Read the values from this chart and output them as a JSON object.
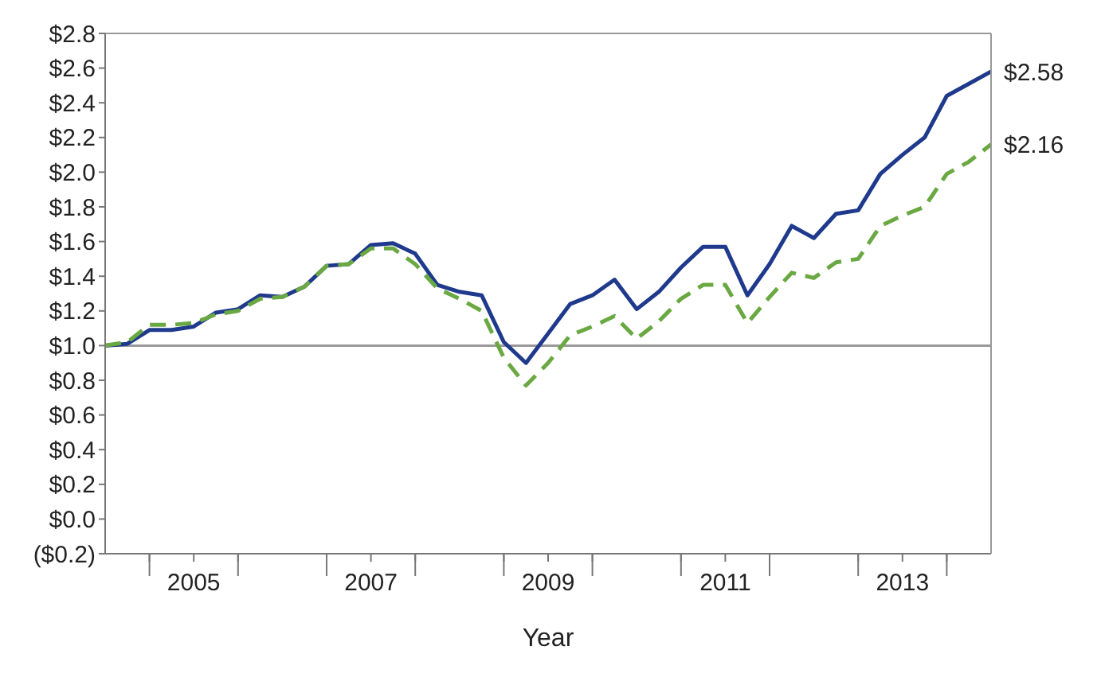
{
  "chart_data": {
    "type": "line",
    "xlabel": "Year",
    "x": [
      2004.5,
      2004.75,
      2005,
      2005.25,
      2005.5,
      2005.75,
      2006,
      2006.25,
      2006.5,
      2006.75,
      2007,
      2007.25,
      2007.5,
      2007.75,
      2008,
      2008.25,
      2008.5,
      2008.75,
      2009,
      2009.25,
      2009.5,
      2009.75,
      2010,
      2010.25,
      2010.5,
      2010.75,
      2011,
      2011.25,
      2011.5,
      2011.75,
      2012,
      2012.25,
      2012.5,
      2012.75,
      2013,
      2013.25,
      2013.5,
      2013.75,
      2014,
      2014.25,
      2014.5
    ],
    "series": [
      {
        "color": "#1f3a8c",
        "line_style": "solid",
        "values": [
          1.0,
          1.01,
          1.09,
          1.09,
          1.11,
          1.19,
          1.21,
          1.29,
          1.28,
          1.34,
          1.46,
          1.47,
          1.58,
          1.59,
          1.53,
          1.35,
          1.31,
          1.29,
          1.02,
          0.9,
          1.07,
          1.24,
          1.29,
          1.38,
          1.21,
          1.31,
          1.45,
          1.57,
          1.57,
          1.29,
          1.47,
          1.69,
          1.62,
          1.76,
          1.78,
          1.99,
          2.1,
          2.2,
          2.44,
          2.51,
          2.58
        ]
      },
      {
        "color": "#6aa842",
        "line_style": "dashed",
        "values": [
          1.0,
          1.02,
          1.12,
          1.12,
          1.13,
          1.18,
          1.2,
          1.27,
          1.28,
          1.34,
          1.46,
          1.47,
          1.56,
          1.56,
          1.47,
          1.33,
          1.27,
          1.2,
          0.93,
          0.77,
          0.9,
          1.06,
          1.11,
          1.17,
          1.04,
          1.14,
          1.27,
          1.35,
          1.35,
          1.13,
          1.28,
          1.42,
          1.39,
          1.48,
          1.5,
          1.69,
          1.75,
          1.8,
          1.99,
          2.06,
          2.16
        ]
      }
    ],
    "annotations": [
      {
        "text": "$2.58",
        "x": 2014.5,
        "y": 2.58
      },
      {
        "text": "$2.16",
        "x": 2014.5,
        "y": 2.16
      }
    ],
    "ref_lines": [
      {
        "axis": "y",
        "value": 1.0,
        "color": "#999999"
      }
    ],
    "xlim": [
      2004.5,
      2014.5
    ],
    "xticks": [
      {
        "value": 2005,
        "label": null
      },
      {
        "value": 2005.5,
        "label": "2005"
      },
      {
        "value": 2006,
        "label": null
      },
      {
        "value": 2007,
        "label": null
      },
      {
        "value": 2007.5,
        "label": "2007"
      },
      {
        "value": 2008,
        "label": null
      },
      {
        "value": 2009,
        "label": null
      },
      {
        "value": 2009.5,
        "label": "2009"
      },
      {
        "value": 2010,
        "label": null
      },
      {
        "value": 2011,
        "label": null
      },
      {
        "value": 2011.5,
        "label": "2011"
      },
      {
        "value": 2012,
        "label": null
      },
      {
        "value": 2013,
        "label": null
      },
      {
        "value": 2013.5,
        "label": "2013"
      },
      {
        "value": 2014,
        "label": null
      }
    ],
    "ylim": [
      -0.2,
      2.8
    ],
    "yticks": [
      {
        "value": -0.2,
        "label": "($0.2)"
      },
      {
        "value": 0,
        "label": "$0.0"
      },
      {
        "value": 0.2,
        "label": "$0.2"
      },
      {
        "value": 0.4,
        "label": "$0.4"
      },
      {
        "value": 0.6,
        "label": "$0.6"
      },
      {
        "value": 0.8,
        "label": "$0.8"
      },
      {
        "value": 1.0,
        "label": "$1.0"
      },
      {
        "value": 1.2,
        "label": "$1.2"
      },
      {
        "value": 1.4,
        "label": "$1.4"
      },
      {
        "value": 1.6,
        "label": "$1.6"
      },
      {
        "value": 1.8,
        "label": "$1.8"
      },
      {
        "value": 2.0,
        "label": "$2.0"
      },
      {
        "value": 2.2,
        "label": "$2.2"
      },
      {
        "value": 2.4,
        "label": "$2.4"
      },
      {
        "value": 2.6,
        "label": "$2.6"
      },
      {
        "value": 2.8,
        "label": "$2.8"
      }
    ],
    "grid": false,
    "legend": false,
    "marker": "none"
  }
}
